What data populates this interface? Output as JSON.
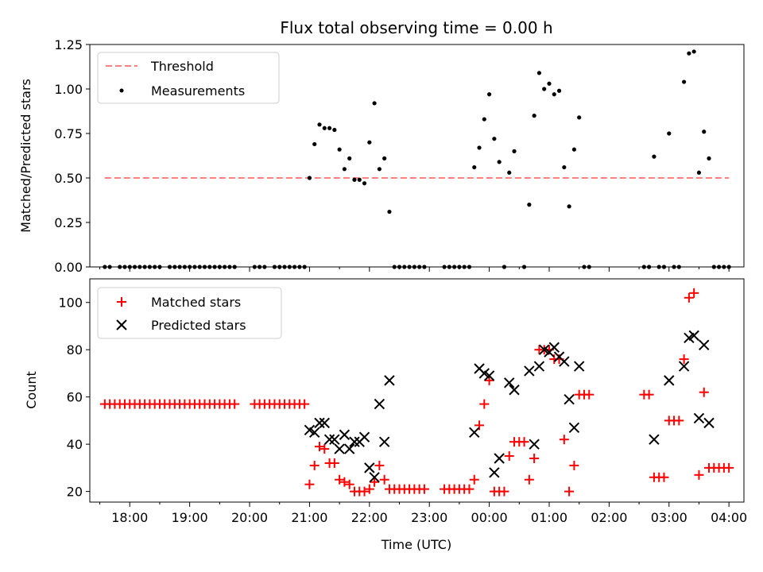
{
  "chart_data": [
    {
      "type": "scatter",
      "title": "Flux total observing time = 0.00 h",
      "xlabel": "",
      "ylabel": "Matched/Predicted stars",
      "ylim": [
        0,
        1.25
      ],
      "xlim": [
        "17:20",
        "04:15"
      ],
      "yticks": [
        "0.00",
        "0.25",
        "0.50",
        "0.75",
        "1.00",
        "1.25"
      ],
      "legend_position": "top-left",
      "threshold": {
        "name": "Threshold",
        "value": 0.5,
        "x_range": [
          "17:35",
          "04:00"
        ],
        "color": "#ff8080",
        "style": "dashed"
      },
      "series": [
        {
          "name": "Measurements",
          "color": "#000000",
          "marker": "dot",
          "points": [
            [
              "17:35",
              0
            ],
            [
              "17:40",
              0
            ],
            [
              "17:50",
              0
            ],
            [
              "17:55",
              0
            ],
            [
              "18:00",
              0
            ],
            [
              "18:05",
              0
            ],
            [
              "18:10",
              0
            ],
            [
              "18:15",
              0
            ],
            [
              "18:20",
              0
            ],
            [
              "18:25",
              0
            ],
            [
              "18:30",
              0
            ],
            [
              "18:40",
              0
            ],
            [
              "18:45",
              0
            ],
            [
              "18:50",
              0
            ],
            [
              "18:55",
              0
            ],
            [
              "19:00",
              0
            ],
            [
              "19:05",
              0
            ],
            [
              "19:10",
              0
            ],
            [
              "19:15",
              0
            ],
            [
              "19:20",
              0
            ],
            [
              "19:25",
              0
            ],
            [
              "19:30",
              0
            ],
            [
              "19:35",
              0
            ],
            [
              "19:40",
              0
            ],
            [
              "19:45",
              0
            ],
            [
              "20:05",
              0
            ],
            [
              "20:10",
              0
            ],
            [
              "20:15",
              0
            ],
            [
              "20:25",
              0
            ],
            [
              "20:30",
              0
            ],
            [
              "20:35",
              0
            ],
            [
              "20:40",
              0
            ],
            [
              "20:45",
              0
            ],
            [
              "20:50",
              0
            ],
            [
              "20:55",
              0
            ],
            [
              "21:00",
              0.5
            ],
            [
              "21:05",
              0.69
            ],
            [
              "21:10",
              0.8
            ],
            [
              "21:15",
              0.78
            ],
            [
              "21:20",
              0.78
            ],
            [
              "21:25",
              0.77
            ],
            [
              "21:30",
              0.66
            ],
            [
              "21:35",
              0.55
            ],
            [
              "21:40",
              0.61
            ],
            [
              "21:45",
              0.49
            ],
            [
              "21:50",
              0.49
            ],
            [
              "21:55",
              0.47
            ],
            [
              "22:00",
              0.7
            ],
            [
              "22:05",
              0.92
            ],
            [
              "22:10",
              0.55
            ],
            [
              "22:15",
              0.61
            ],
            [
              "22:20",
              0.31
            ],
            [
              "22:25",
              0
            ],
            [
              "22:30",
              0
            ],
            [
              "22:35",
              0
            ],
            [
              "22:40",
              0
            ],
            [
              "22:45",
              0
            ],
            [
              "22:50",
              0
            ],
            [
              "22:55",
              0
            ],
            [
              "23:15",
              0
            ],
            [
              "23:20",
              0
            ],
            [
              "23:25",
              0
            ],
            [
              "23:30",
              0
            ],
            [
              "23:35",
              0
            ],
            [
              "23:40",
              0
            ],
            [
              "23:45",
              0.56
            ],
            [
              "23:50",
              0.67
            ],
            [
              "23:55",
              0.83
            ],
            [
              "00:00",
              0.97
            ],
            [
              "00:05",
              0.72
            ],
            [
              "00:10",
              0.59
            ],
            [
              "00:15",
              0
            ],
            [
              "00:20",
              0.53
            ],
            [
              "00:25",
              0.65
            ],
            [
              "00:35",
              0
            ],
            [
              "00:40",
              0.35
            ],
            [
              "00:45",
              0.85
            ],
            [
              "00:50",
              1.09
            ],
            [
              "00:55",
              1.0
            ],
            [
              "01:00",
              1.03
            ],
            [
              "01:05",
              0.97
            ],
            [
              "01:10",
              0.99
            ],
            [
              "01:15",
              0.56
            ],
            [
              "01:20",
              0.34
            ],
            [
              "01:25",
              0.66
            ],
            [
              "01:30",
              0.84
            ],
            [
              "01:35",
              0
            ],
            [
              "01:40",
              0
            ],
            [
              "02:35",
              0
            ],
            [
              "02:40",
              0
            ],
            [
              "02:45",
              0.62
            ],
            [
              "02:50",
              0
            ],
            [
              "02:55",
              0
            ],
            [
              "03:00",
              0.75
            ],
            [
              "03:05",
              0
            ],
            [
              "03:10",
              0
            ],
            [
              "03:15",
              1.04
            ],
            [
              "03:20",
              1.2
            ],
            [
              "03:25",
              1.21
            ],
            [
              "03:30",
              0.53
            ],
            [
              "03:35",
              0.76
            ],
            [
              "03:40",
              0.61
            ],
            [
              "03:45",
              0
            ],
            [
              "03:50",
              0
            ],
            [
              "03:55",
              0
            ],
            [
              "04:00",
              0
            ]
          ]
        }
      ]
    },
    {
      "type": "scatter",
      "title": "",
      "xlabel": "Time (UTC)",
      "ylabel": "Count",
      "ylim": [
        15.5,
        110
      ],
      "xlim": [
        "17:20",
        "04:15"
      ],
      "yticks": [
        "20",
        "40",
        "60",
        "80",
        "100"
      ],
      "xticks": [
        "18:00",
        "19:00",
        "20:00",
        "21:00",
        "22:00",
        "23:00",
        "00:00",
        "01:00",
        "02:00",
        "03:00",
        "04:00"
      ],
      "legend_position": "top-left",
      "series": [
        {
          "name": "Matched stars",
          "color": "#ff0000",
          "marker": "plus",
          "points": [
            [
              "17:35",
              57
            ],
            [
              "17:40",
              57
            ],
            [
              "17:45",
              57
            ],
            [
              "17:50",
              57
            ],
            [
              "17:55",
              57
            ],
            [
              "18:00",
              57
            ],
            [
              "18:05",
              57
            ],
            [
              "18:10",
              57
            ],
            [
              "18:15",
              57
            ],
            [
              "18:20",
              57
            ],
            [
              "18:25",
              57
            ],
            [
              "18:30",
              57
            ],
            [
              "18:35",
              57
            ],
            [
              "18:40",
              57
            ],
            [
              "18:45",
              57
            ],
            [
              "18:50",
              57
            ],
            [
              "18:55",
              57
            ],
            [
              "19:00",
              57
            ],
            [
              "19:05",
              57
            ],
            [
              "19:10",
              57
            ],
            [
              "19:15",
              57
            ],
            [
              "19:20",
              57
            ],
            [
              "19:25",
              57
            ],
            [
              "19:30",
              57
            ],
            [
              "19:35",
              57
            ],
            [
              "19:40",
              57
            ],
            [
              "19:45",
              57
            ],
            [
              "20:05",
              57
            ],
            [
              "20:10",
              57
            ],
            [
              "20:15",
              57
            ],
            [
              "20:20",
              57
            ],
            [
              "20:25",
              57
            ],
            [
              "20:30",
              57
            ],
            [
              "20:35",
              57
            ],
            [
              "20:40",
              57
            ],
            [
              "20:45",
              57
            ],
            [
              "20:50",
              57
            ],
            [
              "20:55",
              57
            ],
            [
              "21:00",
              23
            ],
            [
              "21:05",
              31
            ],
            [
              "21:10",
              39
            ],
            [
              "21:15",
              38
            ],
            [
              "21:20",
              32
            ],
            [
              "21:25",
              32
            ],
            [
              "21:30",
              25
            ],
            [
              "21:35",
              24
            ],
            [
              "21:40",
              23
            ],
            [
              "21:45",
              20
            ],
            [
              "21:50",
              20
            ],
            [
              "21:55",
              20
            ],
            [
              "22:00",
              21
            ],
            [
              "22:05",
              24
            ],
            [
              "22:10",
              31
            ],
            [
              "22:15",
              25
            ],
            [
              "22:20",
              21
            ],
            [
              "22:25",
              21
            ],
            [
              "22:30",
              21
            ],
            [
              "22:35",
              21
            ],
            [
              "22:40",
              21
            ],
            [
              "22:45",
              21
            ],
            [
              "22:50",
              21
            ],
            [
              "22:55",
              21
            ],
            [
              "23:15",
              21
            ],
            [
              "23:20",
              21
            ],
            [
              "23:25",
              21
            ],
            [
              "23:30",
              21
            ],
            [
              "23:35",
              21
            ],
            [
              "23:40",
              21
            ],
            [
              "23:45",
              25
            ],
            [
              "23:50",
              48
            ],
            [
              "23:55",
              57
            ],
            [
              "00:00",
              67
            ],
            [
              "00:05",
              20
            ],
            [
              "00:10",
              20
            ],
            [
              "00:15",
              20
            ],
            [
              "00:20",
              35
            ],
            [
              "00:25",
              41
            ],
            [
              "00:30",
              41
            ],
            [
              "00:35",
              41
            ],
            [
              "00:40",
              25
            ],
            [
              "00:45",
              34
            ],
            [
              "00:50",
              80
            ],
            [
              "00:55",
              80
            ],
            [
              "01:00",
              80
            ],
            [
              "01:05",
              76
            ],
            [
              "01:10",
              76
            ],
            [
              "01:15",
              42
            ],
            [
              "01:20",
              20
            ],
            [
              "01:25",
              31
            ],
            [
              "01:30",
              61
            ],
            [
              "01:35",
              61
            ],
            [
              "01:40",
              61
            ],
            [
              "02:35",
              61
            ],
            [
              "02:40",
              61
            ],
            [
              "02:45",
              26
            ],
            [
              "02:50",
              26
            ],
            [
              "02:55",
              26
            ],
            [
              "03:00",
              50
            ],
            [
              "03:05",
              50
            ],
            [
              "03:10",
              50
            ],
            [
              "03:15",
              76
            ],
            [
              "03:20",
              102
            ],
            [
              "03:25",
              104
            ],
            [
              "03:30",
              27
            ],
            [
              "03:35",
              62
            ],
            [
              "03:40",
              30
            ],
            [
              "03:45",
              30
            ],
            [
              "03:50",
              30
            ],
            [
              "03:55",
              30
            ],
            [
              "04:00",
              30
            ]
          ]
        },
        {
          "name": "Predicted stars",
          "color": "#000000",
          "marker": "x",
          "points": [
            [
              "21:00",
              46
            ],
            [
              "21:05",
              45
            ],
            [
              "21:10",
              49
            ],
            [
              "21:15",
              49
            ],
            [
              "21:20",
              42
            ],
            [
              "21:25",
              42
            ],
            [
              "21:30",
              38
            ],
            [
              "21:35",
              44
            ],
            [
              "21:40",
              38
            ],
            [
              "21:45",
              41
            ],
            [
              "21:50",
              41
            ],
            [
              "21:55",
              43
            ],
            [
              "22:00",
              30
            ],
            [
              "22:05",
              26
            ],
            [
              "22:10",
              57
            ],
            [
              "22:15",
              41
            ],
            [
              "22:20",
              67
            ],
            [
              "23:45",
              45
            ],
            [
              "23:50",
              72
            ],
            [
              "23:55",
              70
            ],
            [
              "00:00",
              69
            ],
            [
              "00:05",
              28
            ],
            [
              "00:10",
              34
            ],
            [
              "00:20",
              66
            ],
            [
              "00:25",
              63
            ],
            [
              "00:40",
              71
            ],
            [
              "00:45",
              40
            ],
            [
              "00:50",
              73
            ],
            [
              "00:55",
              80
            ],
            [
              "01:00",
              79
            ],
            [
              "01:05",
              81
            ],
            [
              "01:10",
              77
            ],
            [
              "01:15",
              75
            ],
            [
              "01:20",
              59
            ],
            [
              "01:25",
              47
            ],
            [
              "01:30",
              73
            ],
            [
              "02:45",
              42
            ],
            [
              "03:00",
              67
            ],
            [
              "03:15",
              73
            ],
            [
              "03:20",
              85
            ],
            [
              "03:25",
              86
            ],
            [
              "03:30",
              51
            ],
            [
              "03:35",
              82
            ],
            [
              "03:40",
              49
            ]
          ]
        }
      ]
    }
  ]
}
